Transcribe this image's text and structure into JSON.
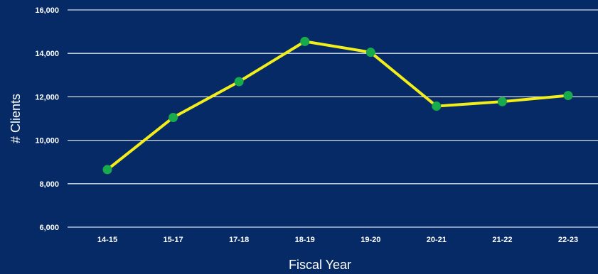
{
  "chart_data": {
    "type": "line",
    "title": "",
    "xlabel": "Fiscal Year",
    "ylabel": "# Clients",
    "categories": [
      "14-15",
      "15-17",
      "17-18",
      "18-19",
      "19-20",
      "20-21",
      "21-22",
      "22-23"
    ],
    "series": [
      {
        "values": [
          8650,
          11050,
          12700,
          14550,
          14050,
          11570,
          11780,
          12060
        ]
      }
    ],
    "ylim": [
      6000,
      16000
    ],
    "yticks": [
      6000,
      8000,
      10000,
      12000,
      14000,
      16000
    ],
    "ytick_labels": [
      "6,000",
      "8,000",
      "10,000",
      "12,000",
      "14,000",
      "16,000"
    ],
    "grid": true,
    "legend": "none"
  },
  "colors": {
    "background": "#052a66",
    "grid": "#d7deea",
    "line": "#f2ee1b",
    "marker": "#17ab4c",
    "text": "#ffffff"
  }
}
